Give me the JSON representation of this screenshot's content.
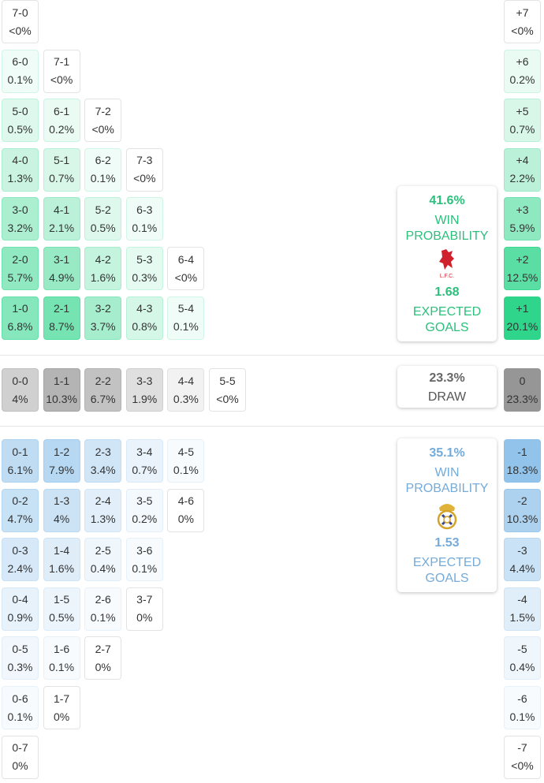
{
  "home": {
    "rows": [
      [
        {
          "score": "7-0",
          "prob": "<0%"
        }
      ],
      [
        {
          "score": "6-0",
          "prob": "0.1%"
        },
        {
          "score": "7-1",
          "prob": "<0%"
        }
      ],
      [
        {
          "score": "5-0",
          "prob": "0.5%"
        },
        {
          "score": "6-1",
          "prob": "0.2%"
        },
        {
          "score": "7-2",
          "prob": "<0%"
        }
      ],
      [
        {
          "score": "4-0",
          "prob": "1.3%"
        },
        {
          "score": "5-1",
          "prob": "0.7%"
        },
        {
          "score": "6-2",
          "prob": "0.1%"
        },
        {
          "score": "7-3",
          "prob": "<0%"
        }
      ],
      [
        {
          "score": "3-0",
          "prob": "3.2%"
        },
        {
          "score": "4-1",
          "prob": "2.1%"
        },
        {
          "score": "5-2",
          "prob": "0.5%"
        },
        {
          "score": "6-3",
          "prob": "0.1%"
        }
      ],
      [
        {
          "score": "2-0",
          "prob": "5.7%"
        },
        {
          "score": "3-1",
          "prob": "4.9%"
        },
        {
          "score": "4-2",
          "prob": "1.6%"
        },
        {
          "score": "5-3",
          "prob": "0.3%"
        },
        {
          "score": "6-4",
          "prob": "<0%"
        }
      ],
      [
        {
          "score": "1-0",
          "prob": "6.8%"
        },
        {
          "score": "2-1",
          "prob": "8.7%"
        },
        {
          "score": "3-2",
          "prob": "3.7%"
        },
        {
          "score": "4-3",
          "prob": "0.8%"
        },
        {
          "score": "5-4",
          "prob": "0.1%"
        }
      ]
    ],
    "margins": [
      {
        "label": "+7",
        "prob": "<0%"
      },
      {
        "label": "+6",
        "prob": "0.2%"
      },
      {
        "label": "+5",
        "prob": "0.7%"
      },
      {
        "label": "+4",
        "prob": "2.2%"
      },
      {
        "label": "+3",
        "prob": "5.9%"
      },
      {
        "label": "+2",
        "prob": "12.5%"
      },
      {
        "label": "+1",
        "prob": "20.1%"
      }
    ],
    "summary": {
      "win_prob": "41.6%",
      "win_label": "WIN PROBABILITY",
      "xg": "1.68",
      "xg_label": "EXPECTED GOALS"
    }
  },
  "draw": {
    "cells": [
      {
        "score": "0-0",
        "prob": "4%"
      },
      {
        "score": "1-1",
        "prob": "10.3%"
      },
      {
        "score": "2-2",
        "prob": "6.7%"
      },
      {
        "score": "3-3",
        "prob": "1.9%"
      },
      {
        "score": "4-4",
        "prob": "0.3%"
      },
      {
        "score": "5-5",
        "prob": "<0%"
      }
    ],
    "margin": {
      "label": "0",
      "prob": "23.3%"
    },
    "summary": {
      "prob": "23.3%",
      "label": "DRAW"
    }
  },
  "away": {
    "rows": [
      [
        {
          "score": "0-1",
          "prob": "6.1%"
        },
        {
          "score": "1-2",
          "prob": "7.9%"
        },
        {
          "score": "2-3",
          "prob": "3.4%"
        },
        {
          "score": "3-4",
          "prob": "0.7%"
        },
        {
          "score": "4-5",
          "prob": "0.1%"
        }
      ],
      [
        {
          "score": "0-2",
          "prob": "4.7%"
        },
        {
          "score": "1-3",
          "prob": "4%"
        },
        {
          "score": "2-4",
          "prob": "1.3%"
        },
        {
          "score": "3-5",
          "prob": "0.2%"
        },
        {
          "score": "4-6",
          "prob": "0%"
        }
      ],
      [
        {
          "score": "0-3",
          "prob": "2.4%"
        },
        {
          "score": "1-4",
          "prob": "1.6%"
        },
        {
          "score": "2-5",
          "prob": "0.4%"
        },
        {
          "score": "3-6",
          "prob": "0.1%"
        }
      ],
      [
        {
          "score": "0-4",
          "prob": "0.9%"
        },
        {
          "score": "1-5",
          "prob": "0.5%"
        },
        {
          "score": "2-6",
          "prob": "0.1%"
        },
        {
          "score": "3-7",
          "prob": "0%"
        }
      ],
      [
        {
          "score": "0-5",
          "prob": "0.3%"
        },
        {
          "score": "1-6",
          "prob": "0.1%"
        },
        {
          "score": "2-7",
          "prob": "0%"
        }
      ],
      [
        {
          "score": "0-6",
          "prob": "0.1%"
        },
        {
          "score": "1-7",
          "prob": "0%"
        }
      ],
      [
        {
          "score": "0-7",
          "prob": "0%"
        }
      ]
    ],
    "margins": [
      {
        "label": "-1",
        "prob": "18.3%"
      },
      {
        "label": "-2",
        "prob": "10.3%"
      },
      {
        "label": "-3",
        "prob": "4.4%"
      },
      {
        "label": "-4",
        "prob": "1.5%"
      },
      {
        "label": "-5",
        "prob": "0.4%"
      },
      {
        "label": "-6",
        "prob": "0.1%"
      },
      {
        "label": "-7",
        "prob": "<0%"
      }
    ],
    "summary": {
      "win_prob": "35.1%",
      "win_label": "WIN PROBABILITY",
      "xg": "1.53",
      "xg_label": "EXPECTED GOALS"
    }
  }
}
